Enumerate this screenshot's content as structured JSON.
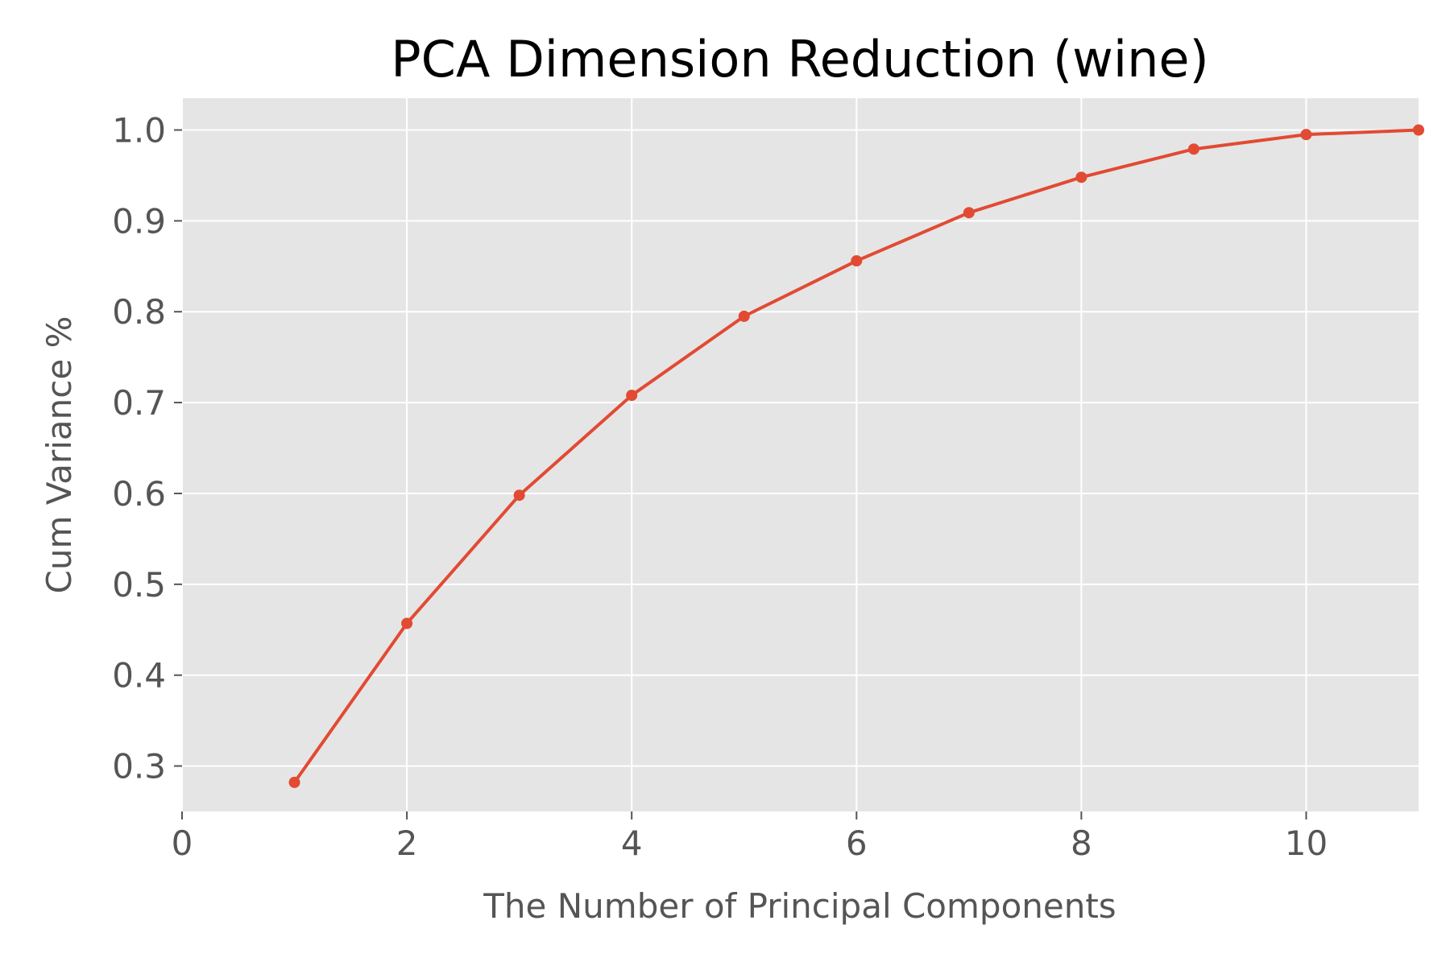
{
  "chart_data": {
    "type": "line",
    "title": "PCA Dimension Reduction (wine)",
    "xlabel": "The Number of Principal Components",
    "ylabel": "Cum Variance %",
    "xlim": [
      0,
      11
    ],
    "ylim": [
      0.25,
      1.035
    ],
    "grid": true,
    "legend": "none",
    "x_ticks": [
      0,
      2,
      4,
      6,
      8,
      10
    ],
    "x_tick_labels": [
      "0",
      "2",
      "4",
      "6",
      "8",
      "10"
    ],
    "y_ticks": [
      0.3,
      0.4,
      0.5,
      0.6,
      0.7,
      0.8,
      0.9,
      1.0
    ],
    "y_tick_labels": [
      "0.3",
      "0.4",
      "0.5",
      "0.6",
      "0.7",
      "0.8",
      "0.9",
      "1.0"
    ],
    "x": [
      1,
      2,
      3,
      4,
      5,
      6,
      7,
      8,
      9,
      10,
      11
    ],
    "series": [
      {
        "values": [
          0.282,
          0.457,
          0.598,
          0.708,
          0.795,
          0.856,
          0.909,
          0.948,
          0.979,
          0.995,
          1.0
        ]
      }
    ],
    "colors": {
      "line": "#e24a33",
      "plot_background": "#e5e5e5",
      "grid": "#ffffff",
      "text": "#555555",
      "title": "#000000"
    }
  }
}
